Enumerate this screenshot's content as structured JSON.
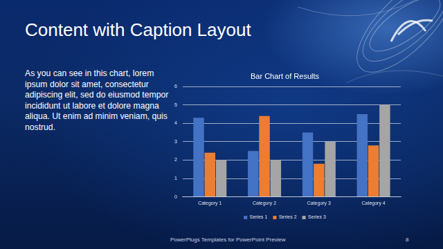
{
  "slide": {
    "title": "Content with Caption Layout",
    "caption": "As you can see in this chart, lorem ipsum dolor sit amet, consectetur adipiscing elit, sed do eiusmod tempor incididunt ut labore et dolore magna aliqua. Ut enim ad minim veniam, quis nostrud.",
    "footer": "PowerPlugs Templates for PowerPoint Preview",
    "page_number": 8
  },
  "chart_data": {
    "type": "bar",
    "title": "Bar Chart of Results",
    "categories": [
      "Category 1",
      "Category 2",
      "Category 3",
      "Category 4"
    ],
    "series": [
      {
        "name": "Series 1",
        "color": "#4472c4",
        "values": [
          4.3,
          2.5,
          3.5,
          4.5
        ]
      },
      {
        "name": "Series 2",
        "color": "#ed7d31",
        "values": [
          2.4,
          4.4,
          1.8,
          2.8
        ]
      },
      {
        "name": "Series 3",
        "color": "#a5a5a5",
        "values": [
          2,
          2,
          3,
          5
        ]
      }
    ],
    "ylim": [
      0,
      6
    ],
    "yticks": [
      0,
      1,
      2,
      3,
      4,
      5,
      6
    ],
    "grid": true,
    "legend": "bottom"
  }
}
